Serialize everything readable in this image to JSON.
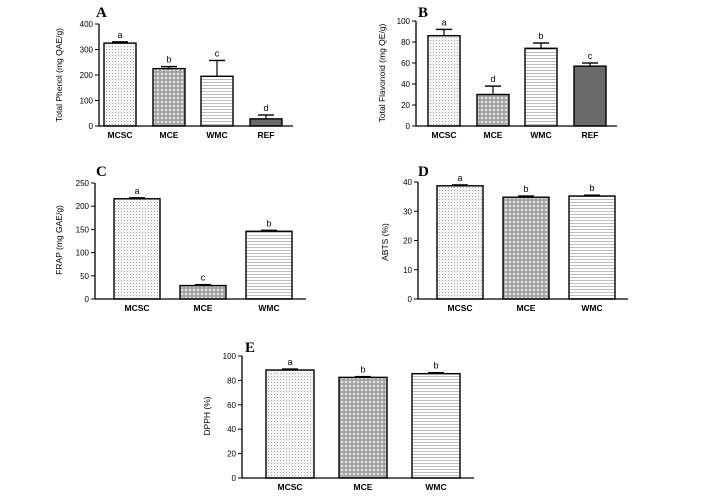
{
  "chart_data": [
    {
      "id": "A",
      "type": "bar",
      "panel_label": "A",
      "ylabel": "Total Phenol (mg QAE/g)",
      "categories": [
        "MCSC",
        "MCE",
        "WMC",
        "REF"
      ],
      "values": [
        325,
        225,
        195,
        28
      ],
      "errors": [
        5,
        8,
        62,
        15
      ],
      "sig_labels": [
        "a",
        "b",
        "c",
        "d"
      ],
      "patterns": [
        "dots",
        "grid",
        "hlines",
        "solid"
      ],
      "ylim": [
        0,
        400
      ],
      "yticks": [
        0,
        100,
        200,
        300,
        400
      ]
    },
    {
      "id": "B",
      "type": "bar",
      "panel_label": "B",
      "ylabel": "Total Flavonoid (mg QE/g)",
      "categories": [
        "MCSC",
        "MCE",
        "WMC",
        "REF"
      ],
      "values": [
        86,
        30,
        74,
        57
      ],
      "errors": [
        6,
        8,
        5,
        3
      ],
      "sig_labels": [
        "a",
        "d",
        "b",
        "c"
      ],
      "patterns": [
        "dots",
        "grid",
        "hlines",
        "solid"
      ],
      "ylim": [
        0,
        100
      ],
      "yticks": [
        0,
        20,
        40,
        60,
        80,
        100
      ]
    },
    {
      "id": "C",
      "type": "bar",
      "panel_label": "C",
      "ylabel": "FRAP (mg GAE/g)",
      "categories": [
        "MCSC",
        "MCE",
        "WMC"
      ],
      "values": [
        216,
        29,
        146
      ],
      "errors": [
        2,
        2,
        2
      ],
      "sig_labels": [
        "a",
        "c",
        "b"
      ],
      "patterns": [
        "dots",
        "grid",
        "hlines"
      ],
      "ylim": [
        0,
        250
      ],
      "yticks": [
        0,
        50,
        100,
        150,
        200,
        250
      ]
    },
    {
      "id": "D",
      "type": "bar",
      "panel_label": "D",
      "ylabel": "ABTS (%)",
      "categories": [
        "MCSC",
        "MCE",
        "WMC"
      ],
      "values": [
        38.7,
        34.8,
        35.2
      ],
      "errors": [
        0.3,
        0.4,
        0.3
      ],
      "sig_labels": [
        "a",
        "b",
        "b"
      ],
      "patterns": [
        "dots",
        "grid",
        "hlines"
      ],
      "ylim": [
        0,
        40
      ],
      "yticks": [
        0,
        10,
        20,
        30,
        40
      ]
    },
    {
      "id": "E",
      "type": "bar",
      "panel_label": "E",
      "ylabel": "DPPH (%)",
      "categories": [
        "MCSC",
        "MCE",
        "WMC"
      ],
      "values": [
        88.5,
        82.5,
        85.5
      ],
      "errors": [
        0.8,
        0.6,
        0.8
      ],
      "sig_labels": [
        "a",
        "b",
        "b"
      ],
      "patterns": [
        "dots",
        "grid",
        "hlines"
      ],
      "ylim": [
        0,
        100
      ],
      "yticks": [
        0,
        20,
        40,
        60,
        80,
        100
      ]
    }
  ],
  "colors": {
    "axis": "#000000",
    "bar_edge": "#000000",
    "dots_bg": "#f4f4f4",
    "dots_fg": "#9a9a9a",
    "grid_bg": "#9f9f9f",
    "grid_fg": "#e2e2e2",
    "hlines_bg": "#ffffff",
    "hlines_fg": "#b5b5b5",
    "solid": "#6a6a6a"
  }
}
